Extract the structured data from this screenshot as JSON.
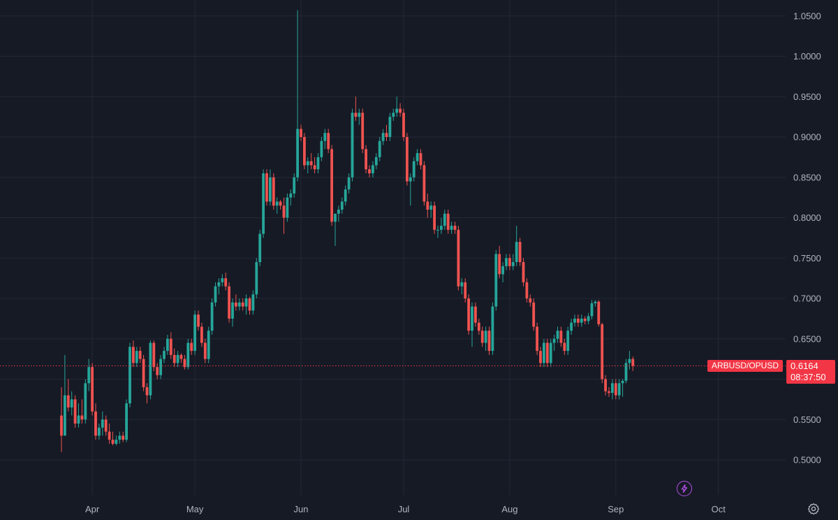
{
  "chart_data": {
    "type": "candlestick",
    "symbol": "ARBUSD/OPUSD",
    "last_price": "0.6164",
    "countdown": "08:37:50",
    "y_range": [
      0.475,
      1.065
    ],
    "y_ticks": [
      "1.0500",
      "1.0000",
      "0.9500",
      "0.9000",
      "0.8500",
      "0.8000",
      "0.7500",
      "0.7000",
      "0.6500",
      "0.6000",
      "0.5500",
      "0.5000"
    ],
    "x_ticks": [
      "Apr",
      "May",
      "Jun",
      "Jul",
      "Aug",
      "Sep",
      "Oct"
    ],
    "grid": true,
    "start_date": "2023-03-23",
    "colors": {
      "up": "#26a69a",
      "down": "#ef5350",
      "background": "#161a25",
      "grid": "#242835",
      "price_line": "#f23645"
    },
    "candles": [
      [
        0.555,
        0.59,
        0.51,
        0.53
      ],
      [
        0.53,
        0.63,
        0.53,
        0.58
      ],
      [
        0.58,
        0.6,
        0.56,
        0.565
      ],
      [
        0.565,
        0.585,
        0.555,
        0.575
      ],
      [
        0.575,
        0.58,
        0.54,
        0.545
      ],
      [
        0.545,
        0.57,
        0.54,
        0.555
      ],
      [
        0.555,
        0.575,
        0.545,
        0.55
      ],
      [
        0.55,
        0.6,
        0.545,
        0.595
      ],
      [
        0.595,
        0.625,
        0.585,
        0.615
      ],
      [
        0.615,
        0.62,
        0.555,
        0.56
      ],
      [
        0.56,
        0.57,
        0.525,
        0.53
      ],
      [
        0.53,
        0.545,
        0.525,
        0.54
      ],
      [
        0.54,
        0.56,
        0.53,
        0.55
      ],
      [
        0.55,
        0.555,
        0.53,
        0.535
      ],
      [
        0.535,
        0.545,
        0.52,
        0.525
      ],
      [
        0.525,
        0.535,
        0.518,
        0.52
      ],
      [
        0.52,
        0.53,
        0.518,
        0.525
      ],
      [
        0.525,
        0.535,
        0.52,
        0.53
      ],
      [
        0.53,
        0.535,
        0.522,
        0.525
      ],
      [
        0.525,
        0.575,
        0.522,
        0.57
      ],
      [
        0.57,
        0.645,
        0.565,
        0.64
      ],
      [
        0.64,
        0.648,
        0.615,
        0.62
      ],
      [
        0.62,
        0.64,
        0.615,
        0.635
      ],
      [
        0.635,
        0.64,
        0.62,
        0.625
      ],
      [
        0.625,
        0.63,
        0.585,
        0.59
      ],
      [
        0.59,
        0.595,
        0.57,
        0.58
      ],
      [
        0.58,
        0.648,
        0.575,
        0.645
      ],
      [
        0.645,
        0.648,
        0.61,
        0.615
      ],
      [
        0.615,
        0.62,
        0.6,
        0.605
      ],
      [
        0.605,
        0.63,
        0.6,
        0.625
      ],
      [
        0.625,
        0.64,
        0.62,
        0.635
      ],
      [
        0.635,
        0.655,
        0.63,
        0.65
      ],
      [
        0.65,
        0.658,
        0.625,
        0.63
      ],
      [
        0.63,
        0.638,
        0.615,
        0.62
      ],
      [
        0.62,
        0.635,
        0.615,
        0.63
      ],
      [
        0.63,
        0.632,
        0.62,
        0.625
      ],
      [
        0.625,
        0.63,
        0.612,
        0.615
      ],
      [
        0.615,
        0.65,
        0.612,
        0.645
      ],
      [
        0.645,
        0.65,
        0.63,
        0.635
      ],
      [
        0.635,
        0.685,
        0.63,
        0.68
      ],
      [
        0.68,
        0.685,
        0.66,
        0.665
      ],
      [
        0.665,
        0.67,
        0.64,
        0.645
      ],
      [
        0.645,
        0.65,
        0.62,
        0.625
      ],
      [
        0.625,
        0.665,
        0.62,
        0.66
      ],
      [
        0.66,
        0.7,
        0.655,
        0.695
      ],
      [
        0.695,
        0.72,
        0.69,
        0.715
      ],
      [
        0.715,
        0.725,
        0.705,
        0.72
      ],
      [
        0.72,
        0.73,
        0.715,
        0.725
      ],
      [
        0.725,
        0.732,
        0.71,
        0.715
      ],
      [
        0.715,
        0.72,
        0.67,
        0.675
      ],
      [
        0.675,
        0.7,
        0.665,
        0.695
      ],
      [
        0.695,
        0.705,
        0.685,
        0.69
      ],
      [
        0.69,
        0.7,
        0.685,
        0.695
      ],
      [
        0.695,
        0.7,
        0.685,
        0.69
      ],
      [
        0.69,
        0.705,
        0.68,
        0.7
      ],
      [
        0.7,
        0.702,
        0.68,
        0.685
      ],
      [
        0.685,
        0.71,
        0.68,
        0.705
      ],
      [
        0.705,
        0.75,
        0.7,
        0.745
      ],
      [
        0.745,
        0.785,
        0.74,
        0.78
      ],
      [
        0.78,
        0.86,
        0.775,
        0.855
      ],
      [
        0.855,
        0.86,
        0.815,
        0.82
      ],
      [
        0.82,
        0.86,
        0.815,
        0.85
      ],
      [
        0.85,
        0.855,
        0.81,
        0.815
      ],
      [
        0.815,
        0.825,
        0.805,
        0.82
      ],
      [
        0.82,
        0.822,
        0.81,
        0.815
      ],
      [
        0.815,
        0.825,
        0.78,
        0.8
      ],
      [
        0.8,
        0.83,
        0.795,
        0.825
      ],
      [
        0.825,
        0.835,
        0.815,
        0.83
      ],
      [
        0.83,
        0.855,
        0.825,
        0.85
      ],
      [
        0.85,
        1.057,
        0.845,
        0.91
      ],
      [
        0.91,
        0.915,
        0.895,
        0.9
      ],
      [
        0.9,
        0.905,
        0.86,
        0.865
      ],
      [
        0.865,
        0.875,
        0.855,
        0.87
      ],
      [
        0.87,
        0.88,
        0.86,
        0.865
      ],
      [
        0.865,
        0.875,
        0.855,
        0.86
      ],
      [
        0.86,
        0.88,
        0.855,
        0.875
      ],
      [
        0.875,
        0.9,
        0.87,
        0.895
      ],
      [
        0.895,
        0.91,
        0.885,
        0.905
      ],
      [
        0.905,
        0.91,
        0.88,
        0.885
      ],
      [
        0.885,
        0.89,
        0.79,
        0.795
      ],
      [
        0.795,
        0.8,
        0.765,
        0.805
      ],
      [
        0.805,
        0.815,
        0.795,
        0.81
      ],
      [
        0.81,
        0.825,
        0.805,
        0.82
      ],
      [
        0.82,
        0.84,
        0.815,
        0.835
      ],
      [
        0.835,
        0.855,
        0.83,
        0.85
      ],
      [
        0.85,
        0.935,
        0.845,
        0.93
      ],
      [
        0.93,
        0.95,
        0.92,
        0.925
      ],
      [
        0.925,
        0.935,
        0.915,
        0.93
      ],
      [
        0.93,
        0.935,
        0.88,
        0.885
      ],
      [
        0.885,
        0.89,
        0.855,
        0.86
      ],
      [
        0.86,
        0.865,
        0.85,
        0.855
      ],
      [
        0.855,
        0.87,
        0.85,
        0.865
      ],
      [
        0.865,
        0.88,
        0.86,
        0.875
      ],
      [
        0.875,
        0.9,
        0.87,
        0.895
      ],
      [
        0.895,
        0.91,
        0.89,
        0.905
      ],
      [
        0.905,
        0.915,
        0.895,
        0.9
      ],
      [
        0.9,
        0.93,
        0.895,
        0.925
      ],
      [
        0.925,
        0.935,
        0.92,
        0.93
      ],
      [
        0.93,
        0.95,
        0.925,
        0.935
      ],
      [
        0.935,
        0.942,
        0.925,
        0.93
      ],
      [
        0.93,
        0.935,
        0.895,
        0.9
      ],
      [
        0.9,
        0.905,
        0.84,
        0.845
      ],
      [
        0.845,
        0.855,
        0.815,
        0.85
      ],
      [
        0.85,
        0.875,
        0.845,
        0.87
      ],
      [
        0.87,
        0.885,
        0.865,
        0.88
      ],
      [
        0.88,
        0.885,
        0.86,
        0.865
      ],
      [
        0.865,
        0.87,
        0.815,
        0.82
      ],
      [
        0.82,
        0.83,
        0.8,
        0.81
      ],
      [
        0.81,
        0.82,
        0.8,
        0.815
      ],
      [
        0.815,
        0.82,
        0.78,
        0.785
      ],
      [
        0.785,
        0.79,
        0.775,
        0.785
      ],
      [
        0.785,
        0.8,
        0.78,
        0.79
      ],
      [
        0.79,
        0.81,
        0.785,
        0.805
      ],
      [
        0.805,
        0.81,
        0.78,
        0.785
      ],
      [
        0.785,
        0.795,
        0.78,
        0.79
      ],
      [
        0.79,
        0.795,
        0.78,
        0.785
      ],
      [
        0.785,
        0.79,
        0.71,
        0.715
      ],
      [
        0.715,
        0.725,
        0.705,
        0.72
      ],
      [
        0.72,
        0.725,
        0.695,
        0.7
      ],
      [
        0.7,
        0.705,
        0.655,
        0.66
      ],
      [
        0.66,
        0.695,
        0.64,
        0.69
      ],
      [
        0.69,
        0.695,
        0.665,
        0.67
      ],
      [
        0.67,
        0.675,
        0.655,
        0.66
      ],
      [
        0.66,
        0.665,
        0.64,
        0.645
      ],
      [
        0.645,
        0.665,
        0.635,
        0.66
      ],
      [
        0.66,
        0.665,
        0.63,
        0.635
      ],
      [
        0.635,
        0.695,
        0.63,
        0.69
      ],
      [
        0.69,
        0.76,
        0.685,
        0.755
      ],
      [
        0.755,
        0.765,
        0.725,
        0.73
      ],
      [
        0.73,
        0.745,
        0.72,
        0.74
      ],
      [
        0.74,
        0.755,
        0.735,
        0.75
      ],
      [
        0.75,
        0.755,
        0.735,
        0.74
      ],
      [
        0.74,
        0.755,
        0.735,
        0.745
      ],
      [
        0.745,
        0.79,
        0.74,
        0.77
      ],
      [
        0.77,
        0.775,
        0.74,
        0.745
      ],
      [
        0.745,
        0.75,
        0.715,
        0.72
      ],
      [
        0.72,
        0.725,
        0.695,
        0.7
      ],
      [
        0.7,
        0.705,
        0.69,
        0.695
      ],
      [
        0.695,
        0.7,
        0.66,
        0.665
      ],
      [
        0.665,
        0.67,
        0.63,
        0.635
      ],
      [
        0.635,
        0.64,
        0.615,
        0.62
      ],
      [
        0.62,
        0.65,
        0.615,
        0.645
      ],
      [
        0.645,
        0.65,
        0.615,
        0.62
      ],
      [
        0.62,
        0.65,
        0.615,
        0.645
      ],
      [
        0.645,
        0.655,
        0.635,
        0.65
      ],
      [
        0.65,
        0.665,
        0.645,
        0.66
      ],
      [
        0.66,
        0.665,
        0.64,
        0.645
      ],
      [
        0.645,
        0.65,
        0.63,
        0.635
      ],
      [
        0.635,
        0.665,
        0.63,
        0.66
      ],
      [
        0.66,
        0.675,
        0.655,
        0.67
      ],
      [
        0.67,
        0.68,
        0.665,
        0.675
      ],
      [
        0.675,
        0.68,
        0.665,
        0.67
      ],
      [
        0.67,
        0.68,
        0.665,
        0.675
      ],
      [
        0.675,
        0.678,
        0.668,
        0.672
      ],
      [
        0.672,
        0.682,
        0.668,
        0.678
      ],
      [
        0.678,
        0.698,
        0.674,
        0.694
      ],
      [
        0.694,
        0.698,
        0.69,
        0.696
      ],
      [
        0.696,
        0.698,
        0.665,
        0.668
      ],
      [
        0.668,
        0.67,
        0.595,
        0.6
      ],
      [
        0.6,
        0.605,
        0.58,
        0.585
      ],
      [
        0.585,
        0.59,
        0.578,
        0.583
      ],
      [
        0.583,
        0.6,
        0.575,
        0.595
      ],
      [
        0.595,
        0.6,
        0.575,
        0.58
      ],
      [
        0.58,
        0.6,
        0.575,
        0.595
      ],
      [
        0.595,
        0.6,
        0.578,
        0.598
      ],
      [
        0.598,
        0.625,
        0.595,
        0.62
      ],
      [
        0.62,
        0.635,
        0.612,
        0.625
      ],
      [
        0.625,
        0.628,
        0.61,
        0.6164
      ]
    ]
  },
  "ui": {
    "bolt_icon": "lightning-bolt-icon",
    "settings_icon": "gear-icon"
  }
}
